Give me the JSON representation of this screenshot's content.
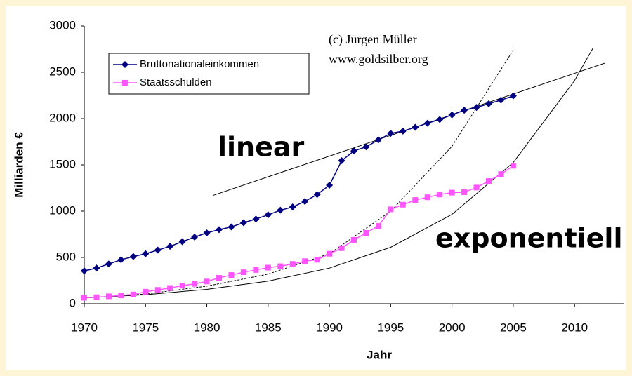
{
  "chart_data": {
    "type": "line",
    "x": [
      1970,
      1971,
      1972,
      1973,
      1974,
      1975,
      1976,
      1977,
      1978,
      1979,
      1980,
      1981,
      1982,
      1983,
      1984,
      1985,
      1986,
      1987,
      1988,
      1989,
      1990,
      1991,
      1992,
      1993,
      1994,
      1995,
      1996,
      1997,
      1998,
      1999,
      2000,
      2001,
      2002,
      2003,
      2004,
      2005
    ],
    "series": [
      {
        "name": "Bruttonationaleinkommen",
        "color": "#000080",
        "marker": "diamond",
        "values": [
          355,
          385,
          430,
          475,
          510,
          540,
          580,
          620,
          670,
          720,
          765,
          800,
          830,
          875,
          915,
          960,
          1010,
          1045,
          1105,
          1180,
          1280,
          1545,
          1650,
          1695,
          1770,
          1840,
          1865,
          1905,
          1950,
          1990,
          2040,
          2090,
          2120,
          2160,
          2200,
          2245
        ]
      },
      {
        "name": "Staatsschulden",
        "color": "#ff55ff",
        "marker": "square",
        "values": [
          65,
          70,
          80,
          90,
          100,
          130,
          150,
          170,
          195,
          215,
          240,
          280,
          310,
          340,
          365,
          390,
          405,
          430,
          460,
          475,
          540,
          600,
          690,
          765,
          840,
          1020,
          1070,
          1120,
          1150,
          1180,
          1200,
          1205,
          1255,
          1325,
          1400,
          1490
        ]
      }
    ],
    "trends": [
      {
        "style": "solid",
        "x": [
          1980.5,
          2012.5
        ],
        "values": [
          1170,
          2600
        ]
      },
      {
        "style": "solid",
        "x": [
          1970,
          1975,
          1980,
          1985,
          1990,
          1995,
          2000,
          2005,
          2010,
          2011.5
        ],
        "values": [
          62,
          98,
          155,
          244,
          385,
          610,
          965,
          1525,
          2410,
          2760
        ]
      },
      {
        "style": "dashed",
        "x": [
          1970,
          1975,
          1980,
          1985,
          1990,
          1995,
          2000,
          2005
        ],
        "values": [
          62,
          105,
          190,
          320,
          540,
          1000,
          1700,
          2740
        ]
      }
    ],
    "xlabel": "Jahr",
    "ylabel": "Milliarden €",
    "annotations": [
      "(c) Jürgen Müller",
      "www.goldsilber.org",
      "linear",
      "exponentiell"
    ],
    "xlim": [
      1970,
      2014
    ],
    "xticks": [
      1970,
      1975,
      1980,
      1985,
      1990,
      1995,
      2000,
      2005,
      2010
    ],
    "ylim": [
      0,
      3000
    ],
    "yticks": [
      0,
      500,
      1000,
      1500,
      2000,
      2500,
      3000
    ],
    "grid": false,
    "legend": "upper left"
  }
}
